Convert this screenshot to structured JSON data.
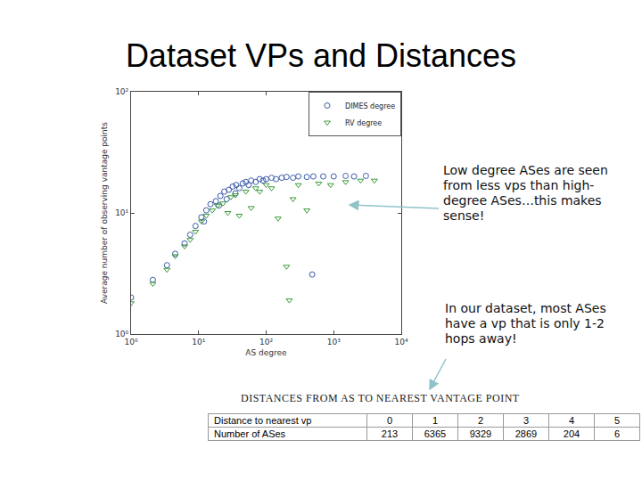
{
  "title": "Dataset VPs and Distances",
  "chart_data": {
    "type": "scatter",
    "x_label": "AS degree",
    "y_label": "Average number of observing vantage points",
    "log": true,
    "grid": false,
    "legend": "upper right",
    "xlim": [
      1,
      10000
    ],
    "xticks": [
      {
        "value": 1,
        "label": "10⁰"
      },
      {
        "value": 10,
        "label": "10¹"
      },
      {
        "value": 100,
        "label": "10²"
      },
      {
        "value": 1000,
        "label": "10³"
      },
      {
        "value": 10000,
        "label": "10⁴"
      }
    ],
    "ylim": [
      1,
      100
    ],
    "yticks": [
      {
        "value": 1,
        "label": "10⁰"
      },
      {
        "value": 10,
        "label": "10¹"
      },
      {
        "value": 100,
        "label": "10²"
      }
    ],
    "series": [
      {
        "name": "DIMES degree",
        "color": "#3b5ba9",
        "marker": "circle-open",
        "x": [
          1,
          2.1,
          3.4,
          4.5,
          6.2,
          7.5,
          9,
          11,
          12,
          13,
          15,
          18,
          20,
          21,
          24,
          26,
          28,
          32,
          35,
          36,
          40,
          45,
          50,
          55,
          60,
          70,
          80,
          90,
          100,
          120,
          140,
          170,
          200,
          250,
          300,
          400,
          480,
          500,
          700,
          1000,
          1500,
          2000,
          3000
        ],
        "values": [
          2.0,
          2.8,
          3.7,
          4.6,
          5.6,
          6.6,
          7.8,
          9.2,
          8.5,
          10.5,
          11.8,
          12.5,
          11.5,
          13.8,
          15,
          13,
          15.5,
          16.5,
          14.5,
          17,
          16,
          17.5,
          18,
          17,
          18.5,
          18,
          19,
          18.5,
          19,
          19.5,
          19,
          19.5,
          19.8,
          19.5,
          20,
          19.8,
          3.1,
          20,
          20,
          20,
          20.2,
          20,
          20.2
        ]
      },
      {
        "name": "RV degree",
        "color": "#3a9a3a",
        "marker": "triangle-down-open",
        "x": [
          1,
          2.1,
          3.4,
          4.5,
          6.2,
          7.5,
          9,
          11,
          13,
          16,
          19,
          23,
          27,
          30,
          35,
          40,
          50,
          60,
          70,
          80,
          100,
          120,
          150,
          200,
          220,
          250,
          300,
          400,
          600,
          900,
          1500,
          2500,
          4000
        ],
        "values": [
          1.8,
          2.6,
          3.4,
          4.4,
          5.3,
          6,
          7,
          8.5,
          9.5,
          10.5,
          11.5,
          12,
          10,
          13.5,
          14,
          9.5,
          15,
          11,
          16,
          15,
          17,
          16,
          9,
          3.6,
          1.9,
          13,
          17,
          10.5,
          17.5,
          17,
          18,
          18.5,
          18.5
        ]
      }
    ]
  },
  "notes": [
    "Low degree ASes are seen from less vps than high-degree ASes…this makes sense!",
    "In our dataset, most ASes have a vp that is only 1-2 hops away!"
  ],
  "table": {
    "title": "DISTANCES FROM AS TO NEAREST VANTAGE POINT",
    "rows": [
      [
        "Distance to nearest vp",
        0,
        1,
        2,
        3,
        4,
        5
      ],
      [
        "Number of ASes",
        213,
        6365,
        9329,
        2869,
        204,
        6
      ]
    ]
  }
}
